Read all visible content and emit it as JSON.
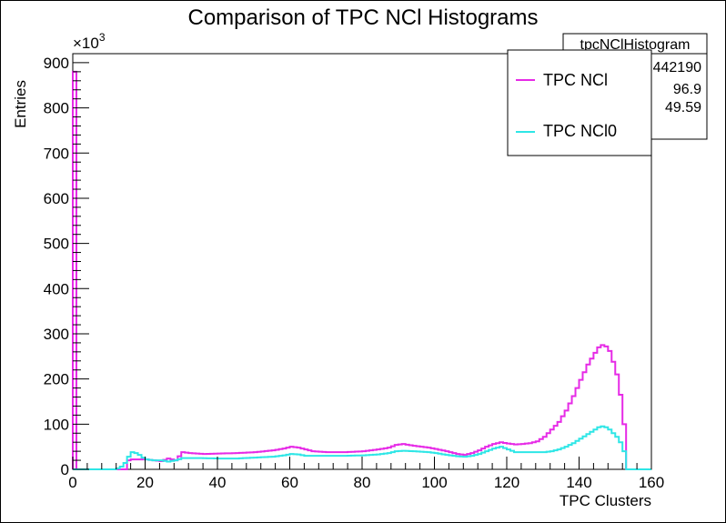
{
  "chart_data": {
    "type": "histogram",
    "title": "Comparison of TPC NCl Histograms",
    "xlabel": "TPC Clusters",
    "ylabel": "Entries",
    "y_multiplier_label": "×10",
    "y_multiplier_exponent": "3",
    "xlim": [
      0,
      160
    ],
    "ylim": [
      0,
      920
    ],
    "xticks": [
      0,
      20,
      40,
      60,
      80,
      100,
      120,
      140,
      160
    ],
    "yticks": [
      0,
      100,
      200,
      300,
      400,
      500,
      600,
      700,
      800,
      900
    ],
    "bin_width": 1,
    "grid": false,
    "legend_position": "top-right",
    "colors": {
      "ncl": "#e62ae6",
      "ncl0": "#2ee6e6"
    },
    "stats_box": {
      "title": "tpcNClHistogram",
      "rows": [
        "442190",
        "96.9",
        "49.59"
      ]
    },
    "series": [
      {
        "name": "TPC NCl",
        "key": "ncl",
        "points": [
          [
            0,
            880
          ],
          [
            1,
            0
          ],
          [
            14,
            0
          ],
          [
            15,
            20
          ],
          [
            16,
            22
          ],
          [
            17,
            22
          ],
          [
            18,
            22
          ],
          [
            20,
            22
          ],
          [
            22,
            20
          ],
          [
            24,
            18
          ],
          [
            26,
            24
          ],
          [
            28,
            20
          ],
          [
            30,
            38
          ],
          [
            32,
            36
          ],
          [
            36,
            34
          ],
          [
            40,
            35
          ],
          [
            45,
            36
          ],
          [
            50,
            38
          ],
          [
            55,
            42
          ],
          [
            58,
            46
          ],
          [
            60,
            50
          ],
          [
            62,
            48
          ],
          [
            64,
            44
          ],
          [
            66,
            40
          ],
          [
            70,
            38
          ],
          [
            75,
            38
          ],
          [
            80,
            40
          ],
          [
            84,
            44
          ],
          [
            87,
            48
          ],
          [
            89,
            54
          ],
          [
            91,
            56
          ],
          [
            94,
            52
          ],
          [
            98,
            48
          ],
          [
            100,
            45
          ],
          [
            103,
            40
          ],
          [
            106,
            34
          ],
          [
            108,
            32
          ],
          [
            110,
            36
          ],
          [
            112,
            42
          ],
          [
            114,
            50
          ],
          [
            116,
            56
          ],
          [
            118,
            60
          ],
          [
            120,
            57
          ],
          [
            122,
            55
          ],
          [
            124,
            56
          ],
          [
            126,
            58
          ],
          [
            128,
            62
          ],
          [
            130,
            72
          ],
          [
            132,
            88
          ],
          [
            134,
            105
          ],
          [
            136,
            130
          ],
          [
            138,
            162
          ],
          [
            140,
            198
          ],
          [
            142,
            232
          ],
          [
            144,
            258
          ],
          [
            145,
            270
          ],
          [
            146,
            275
          ],
          [
            147,
            272
          ],
          [
            148,
            262
          ],
          [
            149,
            238
          ],
          [
            150,
            210
          ],
          [
            151,
            165
          ],
          [
            152,
            100
          ],
          [
            153,
            0
          ],
          [
            160,
            0
          ]
        ]
      },
      {
        "name": "TPC NCl0",
        "key": "ncl0",
        "points": [
          [
            0,
            0
          ],
          [
            11,
            0
          ],
          [
            12,
            2
          ],
          [
            13,
            6
          ],
          [
            14,
            14
          ],
          [
            15,
            28
          ],
          [
            16,
            38
          ],
          [
            17,
            36
          ],
          [
            18,
            32
          ],
          [
            19,
            26
          ],
          [
            20,
            22
          ],
          [
            22,
            20
          ],
          [
            24,
            20
          ],
          [
            26,
            17
          ],
          [
            28,
            20
          ],
          [
            30,
            25
          ],
          [
            34,
            25
          ],
          [
            40,
            24
          ],
          [
            45,
            24
          ],
          [
            50,
            26
          ],
          [
            55,
            28
          ],
          [
            58,
            31
          ],
          [
            60,
            34
          ],
          [
            62,
            33
          ],
          [
            64,
            30
          ],
          [
            70,
            30
          ],
          [
            75,
            30
          ],
          [
            80,
            31
          ],
          [
            84,
            33
          ],
          [
            87,
            36
          ],
          [
            89,
            40
          ],
          [
            91,
            41
          ],
          [
            94,
            40
          ],
          [
            98,
            38
          ],
          [
            100,
            36
          ],
          [
            103,
            32
          ],
          [
            106,
            29
          ],
          [
            108,
            28
          ],
          [
            110,
            30
          ],
          [
            112,
            34
          ],
          [
            114,
            40
          ],
          [
            116,
            46
          ],
          [
            118,
            50
          ],
          [
            120,
            44
          ],
          [
            122,
            38
          ],
          [
            124,
            38
          ],
          [
            126,
            38
          ],
          [
            128,
            38
          ],
          [
            130,
            38
          ],
          [
            132,
            40
          ],
          [
            134,
            44
          ],
          [
            136,
            50
          ],
          [
            138,
            58
          ],
          [
            140,
            68
          ],
          [
            142,
            78
          ],
          [
            144,
            88
          ],
          [
            145,
            93
          ],
          [
            146,
            95
          ],
          [
            147,
            93
          ],
          [
            148,
            88
          ],
          [
            149,
            80
          ],
          [
            150,
            72
          ],
          [
            151,
            60
          ],
          [
            152,
            40
          ],
          [
            153,
            0
          ],
          [
            160,
            0
          ]
        ]
      }
    ]
  }
}
